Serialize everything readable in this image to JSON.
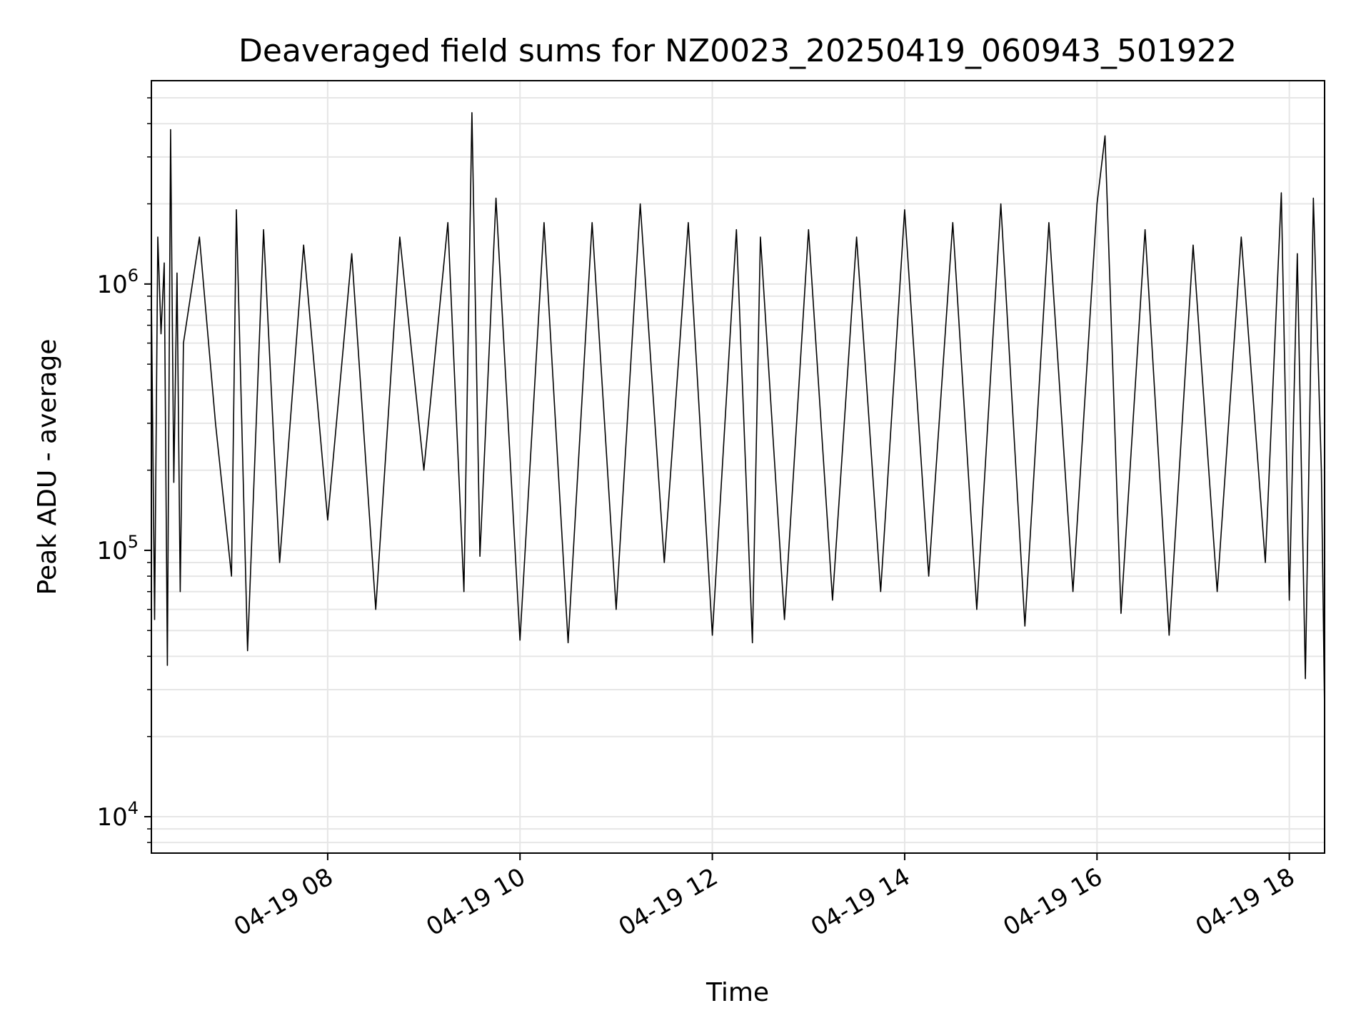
{
  "chart_data": {
    "type": "line",
    "title": "Deaveraged field sums for NZ0023_20250419_060943_501922",
    "xlabel": "Time",
    "ylabel": "Peak ADU - average",
    "x_scale": "time",
    "y_scale": "log",
    "xlim": [
      "2025-04-19 06:10",
      "2025-04-19 18:22"
    ],
    "ylim": [
      7300,
      5800000
    ],
    "x_ticks": [
      {
        "label": "04-19 08",
        "value": "2025-04-19 08:00"
      },
      {
        "label": "04-19 10",
        "value": "2025-04-19 10:00"
      },
      {
        "label": "04-19 12",
        "value": "2025-04-19 12:00"
      },
      {
        "label": "04-19 14",
        "value": "2025-04-19 14:00"
      },
      {
        "label": "04-19 16",
        "value": "2025-04-19 16:00"
      },
      {
        "label": "04-19 18",
        "value": "2025-04-19 18:00"
      }
    ],
    "y_ticks": [
      {
        "base": "10",
        "exp": "4",
        "value": 10000
      },
      {
        "base": "10",
        "exp": "5",
        "value": 100000
      },
      {
        "base": "10",
        "exp": "6",
        "value": 1000000
      }
    ],
    "grid": true,
    "legend": "none",
    "series": [
      {
        "color": "#000000",
        "x": [
          "2025-04-19 06:10",
          "2025-04-19 06:12",
          "2025-04-19 06:14",
          "2025-04-19 06:16",
          "2025-04-19 06:18",
          "2025-04-19 06:20",
          "2025-04-19 06:22",
          "2025-04-19 06:24",
          "2025-04-19 06:26",
          "2025-04-19 06:28",
          "2025-04-19 06:30",
          "2025-04-19 06:40",
          "2025-04-19 06:50",
          "2025-04-19 07:00",
          "2025-04-19 07:03",
          "2025-04-19 07:10",
          "2025-04-19 07:20",
          "2025-04-19 07:30",
          "2025-04-19 07:45",
          "2025-04-19 08:00",
          "2025-04-19 08:15",
          "2025-04-19 08:30",
          "2025-04-19 08:45",
          "2025-04-19 09:00",
          "2025-04-19 09:15",
          "2025-04-19 09:25",
          "2025-04-19 09:30",
          "2025-04-19 09:35",
          "2025-04-19 09:45",
          "2025-04-19 10:00",
          "2025-04-19 10:15",
          "2025-04-19 10:30",
          "2025-04-19 10:45",
          "2025-04-19 11:00",
          "2025-04-19 11:15",
          "2025-04-19 11:30",
          "2025-04-19 11:45",
          "2025-04-19 12:00",
          "2025-04-19 12:15",
          "2025-04-19 12:25",
          "2025-04-19 12:30",
          "2025-04-19 12:45",
          "2025-04-19 13:00",
          "2025-04-19 13:15",
          "2025-04-19 13:30",
          "2025-04-19 13:45",
          "2025-04-19 14:00",
          "2025-04-19 14:15",
          "2025-04-19 14:30",
          "2025-04-19 14:45",
          "2025-04-19 15:00",
          "2025-04-19 15:15",
          "2025-04-19 15:30",
          "2025-04-19 15:45",
          "2025-04-19 16:00",
          "2025-04-19 16:05",
          "2025-04-19 16:15",
          "2025-04-19 16:30",
          "2025-04-19 16:45",
          "2025-04-19 17:00",
          "2025-04-19 17:15",
          "2025-04-19 17:30",
          "2025-04-19 17:45",
          "2025-04-19 17:55",
          "2025-04-19 18:00",
          "2025-04-19 18:05",
          "2025-04-19 18:10",
          "2025-04-19 18:15",
          "2025-04-19 18:20",
          "2025-04-19 18:22"
        ],
        "y": [
          900000,
          55000,
          1500000,
          650000,
          1200000,
          37000,
          3800000,
          180000,
          1100000,
          70000,
          600000,
          1500000,
          300000,
          80000,
          1900000,
          42000,
          1600000,
          90000,
          1400000,
          130000,
          1300000,
          60000,
          1500000,
          200000,
          1700000,
          70000,
          4400000,
          95000,
          2100000,
          46000,
          1700000,
          45000,
          1700000,
          60000,
          2000000,
          90000,
          1700000,
          48000,
          1600000,
          45000,
          1500000,
          55000,
          1600000,
          65000,
          1500000,
          70000,
          1900000,
          80000,
          1700000,
          60000,
          2000000,
          52000,
          1700000,
          70000,
          2000000,
          3600000,
          58000,
          1600000,
          48000,
          1400000,
          70000,
          1500000,
          90000,
          2200000,
          65000,
          1300000,
          33000,
          2100000,
          200000,
          25000
        ]
      }
    ]
  }
}
